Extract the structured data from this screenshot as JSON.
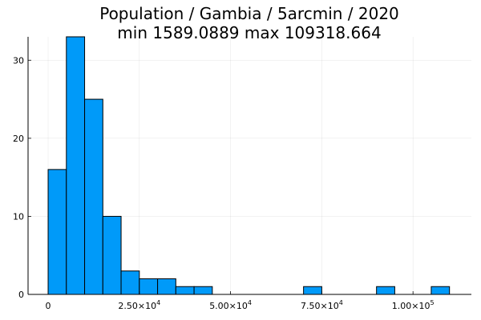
{
  "chart_data": {
    "type": "bar",
    "title": "Population / Gambia / 5arcmin / 2020",
    "subtitle": "min 1589.0889  max 109318.664",
    "xlabel": "",
    "ylabel": "",
    "bin_width": 5000,
    "bins_start": 0,
    "values": [
      16,
      33,
      25,
      10,
      3,
      2,
      2,
      1,
      1,
      0,
      0,
      0,
      0,
      0,
      1,
      0,
      0,
      0,
      1,
      0,
      0,
      1
    ],
    "xlim": [
      -5500,
      116000
    ],
    "ylim": [
      0,
      33
    ],
    "x_ticks": [
      {
        "value": 0,
        "mantissa": "0",
        "exponent": ""
      },
      {
        "value": 25000,
        "mantissa": "2.50×10",
        "exponent": "4"
      },
      {
        "value": 50000,
        "mantissa": "5.00×10",
        "exponent": "4"
      },
      {
        "value": 75000,
        "mantissa": "7.50×10",
        "exponent": "4"
      },
      {
        "value": 100000,
        "mantissa": "1.00×10",
        "exponent": "5"
      }
    ],
    "y_ticks": [
      {
        "value": 0,
        "label": "0"
      },
      {
        "value": 10,
        "label": "10"
      },
      {
        "value": 20,
        "label": "20"
      },
      {
        "value": 30,
        "label": "30"
      }
    ],
    "grid": true,
    "legend": "none",
    "bar_color": "#009af9"
  }
}
